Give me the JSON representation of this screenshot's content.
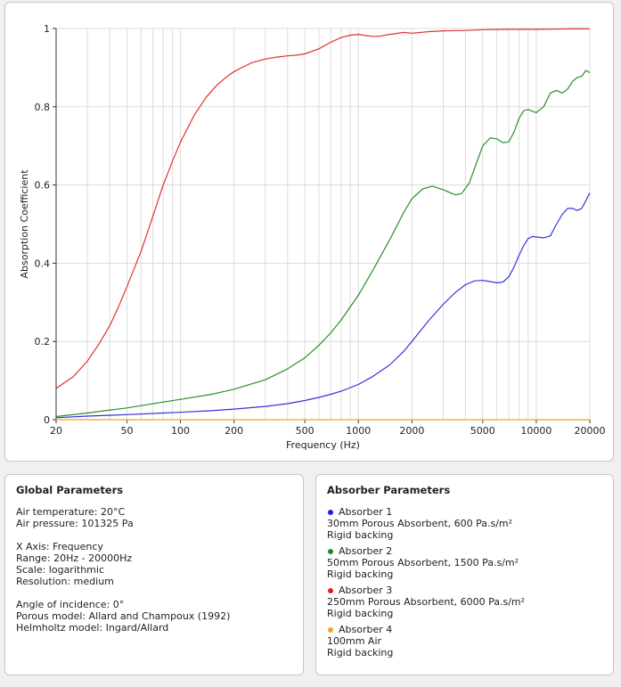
{
  "chart_data": {
    "type": "line",
    "title": "",
    "xlabel": "Frequency (Hz)",
    "ylabel": "Absorption Coefficient",
    "xscale": "log",
    "xlim": [
      20,
      20000
    ],
    "ylim": [
      0,
      1
    ],
    "grid": true,
    "xticks": [
      {
        "value": 20,
        "label": "20"
      },
      {
        "value": 50,
        "label": "50"
      },
      {
        "value": 100,
        "label": "100"
      },
      {
        "value": 200,
        "label": "200"
      },
      {
        "value": 500,
        "label": "500"
      },
      {
        "value": 1000,
        "label": "1000"
      },
      {
        "value": 2000,
        "label": "2000"
      },
      {
        "value": 5000,
        "label": "5000"
      },
      {
        "value": 10000,
        "label": "10000"
      },
      {
        "value": 20000,
        "label": "20000"
      }
    ],
    "yticks": [
      {
        "value": 0,
        "label": "0"
      },
      {
        "value": 0.2,
        "label": "0.2"
      },
      {
        "value": 0.4,
        "label": "0.4"
      },
      {
        "value": 0.6,
        "label": "0.6"
      },
      {
        "value": 0.8,
        "label": "0.8"
      },
      {
        "value": 1,
        "label": "1"
      }
    ],
    "series": [
      {
        "name": "Absorber 1",
        "color": "#3333dd",
        "points": [
          [
            20,
            0.005
          ],
          [
            30,
            0.009
          ],
          [
            50,
            0.013
          ],
          [
            80,
            0.017
          ],
          [
            100,
            0.019
          ],
          [
            150,
            0.023
          ],
          [
            200,
            0.027
          ],
          [
            300,
            0.034
          ],
          [
            400,
            0.041
          ],
          [
            500,
            0.049
          ],
          [
            600,
            0.057
          ],
          [
            700,
            0.065
          ],
          [
            800,
            0.073
          ],
          [
            1000,
            0.09
          ],
          [
            1200,
            0.11
          ],
          [
            1500,
            0.14
          ],
          [
            1800,
            0.175
          ],
          [
            2000,
            0.2
          ],
          [
            2500,
            0.255
          ],
          [
            3000,
            0.295
          ],
          [
            3500,
            0.325
          ],
          [
            4000,
            0.345
          ],
          [
            4500,
            0.355
          ],
          [
            5000,
            0.356
          ],
          [
            5500,
            0.353
          ],
          [
            6000,
            0.35
          ],
          [
            6500,
            0.352
          ],
          [
            7000,
            0.365
          ],
          [
            7500,
            0.39
          ],
          [
            8000,
            0.42
          ],
          [
            8500,
            0.445
          ],
          [
            9000,
            0.463
          ],
          [
            9500,
            0.468
          ],
          [
            10000,
            0.467
          ],
          [
            11000,
            0.465
          ],
          [
            12000,
            0.47
          ],
          [
            13000,
            0.5
          ],
          [
            14000,
            0.525
          ],
          [
            15000,
            0.54
          ],
          [
            16000,
            0.54
          ],
          [
            17000,
            0.535
          ],
          [
            18000,
            0.54
          ],
          [
            19000,
            0.56
          ],
          [
            20000,
            0.58
          ]
        ]
      },
      {
        "name": "Absorber 2",
        "color": "#2a8f2a",
        "points": [
          [
            20,
            0.008
          ],
          [
            30,
            0.017
          ],
          [
            50,
            0.03
          ],
          [
            80,
            0.045
          ],
          [
            100,
            0.052
          ],
          [
            150,
            0.065
          ],
          [
            200,
            0.078
          ],
          [
            300,
            0.102
          ],
          [
            400,
            0.13
          ],
          [
            500,
            0.158
          ],
          [
            600,
            0.19
          ],
          [
            700,
            0.222
          ],
          [
            800,
            0.255
          ],
          [
            1000,
            0.318
          ],
          [
            1200,
            0.38
          ],
          [
            1500,
            0.46
          ],
          [
            1800,
            0.53
          ],
          [
            2000,
            0.565
          ],
          [
            2300,
            0.59
          ],
          [
            2600,
            0.597
          ],
          [
            3000,
            0.588
          ],
          [
            3500,
            0.575
          ],
          [
            3800,
            0.578
          ],
          [
            4200,
            0.605
          ],
          [
            4600,
            0.655
          ],
          [
            5000,
            0.7
          ],
          [
            5500,
            0.72
          ],
          [
            6000,
            0.718
          ],
          [
            6500,
            0.708
          ],
          [
            7000,
            0.71
          ],
          [
            7500,
            0.735
          ],
          [
            8000,
            0.77
          ],
          [
            8500,
            0.79
          ],
          [
            9000,
            0.793
          ],
          [
            10000,
            0.785
          ],
          [
            11000,
            0.8
          ],
          [
            12000,
            0.835
          ],
          [
            13000,
            0.842
          ],
          [
            14000,
            0.835
          ],
          [
            15000,
            0.845
          ],
          [
            16000,
            0.865
          ],
          [
            17000,
            0.875
          ],
          [
            18000,
            0.878
          ],
          [
            19000,
            0.893
          ],
          [
            20000,
            0.887
          ]
        ]
      },
      {
        "name": "Absorber 3",
        "color": "#e03030",
        "points": [
          [
            20,
            0.08
          ],
          [
            25,
            0.11
          ],
          [
            30,
            0.15
          ],
          [
            35,
            0.195
          ],
          [
            40,
            0.24
          ],
          [
            45,
            0.29
          ],
          [
            50,
            0.34
          ],
          [
            60,
            0.43
          ],
          [
            70,
            0.52
          ],
          [
            80,
            0.6
          ],
          [
            90,
            0.66
          ],
          [
            100,
            0.71
          ],
          [
            120,
            0.78
          ],
          [
            140,
            0.825
          ],
          [
            160,
            0.855
          ],
          [
            180,
            0.875
          ],
          [
            200,
            0.89
          ],
          [
            250,
            0.912
          ],
          [
            300,
            0.922
          ],
          [
            350,
            0.927
          ],
          [
            400,
            0.93
          ],
          [
            450,
            0.932
          ],
          [
            500,
            0.935
          ],
          [
            600,
            0.948
          ],
          [
            700,
            0.965
          ],
          [
            800,
            0.977
          ],
          [
            900,
            0.983
          ],
          [
            1000,
            0.985
          ],
          [
            1100,
            0.982
          ],
          [
            1200,
            0.98
          ],
          [
            1300,
            0.98
          ],
          [
            1500,
            0.985
          ],
          [
            1800,
            0.99
          ],
          [
            2000,
            0.988
          ],
          [
            2500,
            0.992
          ],
          [
            3000,
            0.994
          ],
          [
            4000,
            0.995
          ],
          [
            5000,
            0.997
          ],
          [
            7000,
            0.998
          ],
          [
            10000,
            0.998
          ],
          [
            15000,
            0.999
          ],
          [
            20000,
            0.999
          ]
        ]
      },
      {
        "name": "Absorber 4",
        "color": "#f0a020",
        "points": [
          [
            20,
            0.0
          ],
          [
            20000,
            0.0
          ]
        ]
      }
    ]
  },
  "global_params": {
    "title": "Global Parameters",
    "groups": [
      [
        "Air temperature: 20°C",
        "Air pressure: 101325 Pa"
      ],
      [
        "X Axis: Frequency",
        "Range: 20Hz - 20000Hz",
        "Scale: logarithmic",
        "Resolution: medium"
      ],
      [
        "Angle of incidence: 0°",
        "Porous model: Allard and Champoux (1992)",
        "Helmholtz model: Ingard/Allard"
      ]
    ]
  },
  "absorber_params": {
    "title": "Absorber Parameters",
    "absorbers": [
      {
        "name": "Absorber 1",
        "color": "#1a1aee",
        "lines": [
          "30mm Porous Absorbent, 600 Pa.s/m²",
          "Rigid backing"
        ]
      },
      {
        "name": "Absorber 2",
        "color": "#1d8a1d",
        "lines": [
          "50mm Porous Absorbent, 1500 Pa.s/m²",
          "Rigid backing"
        ]
      },
      {
        "name": "Absorber 3",
        "color": "#e01e1e",
        "lines": [
          "250mm Porous Absorbent, 6000 Pa.s/m²",
          "Rigid backing"
        ]
      },
      {
        "name": "Absorber 4",
        "color": "#f5a623",
        "lines": [
          "100mm Air",
          "Rigid backing"
        ]
      }
    ]
  }
}
